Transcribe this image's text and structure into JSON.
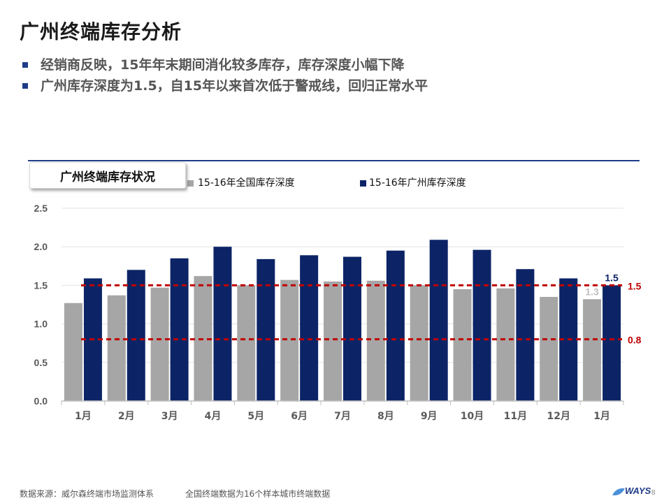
{
  "title": "广州终端库存分析",
  "bullets": [
    "经销商反映，15年年末期间消化较多库存，库存深度小幅下降",
    "广州库存深度为1.5，自15年以来首次低于警戒线，回归正常水平"
  ],
  "chart_tag": "广州终端库存状况",
  "footer": {
    "source": "数据来源：威尔森终端市场监测体系",
    "note": "全国终端数据为16个样本城市终端数据",
    "brand": "WAYS",
    "page_number": "8"
  },
  "colors": {
    "national": "#a6a6a6",
    "guangzhou": "#0c2466",
    "threshold_line": "#c00000",
    "title_rule": "#1f3c88"
  },
  "chart_data": {
    "type": "bar",
    "categories": [
      "1月",
      "2月",
      "3月",
      "4月",
      "5月",
      "6月",
      "7月",
      "8月",
      "9月",
      "10月",
      "11月",
      "12月",
      "1月"
    ],
    "series": [
      {
        "name": "15-16年全国库存深度",
        "values": [
          1.27,
          1.37,
          1.47,
          1.62,
          1.5,
          1.57,
          1.55,
          1.56,
          1.5,
          1.45,
          1.46,
          1.35,
          1.32
        ]
      },
      {
        "name": "15-16年广州库存深度",
        "values": [
          1.59,
          1.7,
          1.85,
          2.0,
          1.84,
          1.89,
          1.87,
          1.95,
          2.09,
          1.96,
          1.71,
          1.59,
          1.5
        ]
      }
    ],
    "ylim": [
      0,
      2.5
    ],
    "yticks": [
      "0.0",
      "0.5",
      "1.0",
      "1.5",
      "2.0",
      "2.5"
    ],
    "reference_lines": [
      {
        "value": 1.5,
        "label": "1.5"
      },
      {
        "value": 0.8,
        "label": "0.8"
      }
    ],
    "data_labels": [
      {
        "series": 0,
        "index": 12,
        "text": "1.3"
      },
      {
        "series": 1,
        "index": 12,
        "text": "1.5"
      }
    ],
    "legend_position": "top",
    "grid": "horizontal"
  }
}
